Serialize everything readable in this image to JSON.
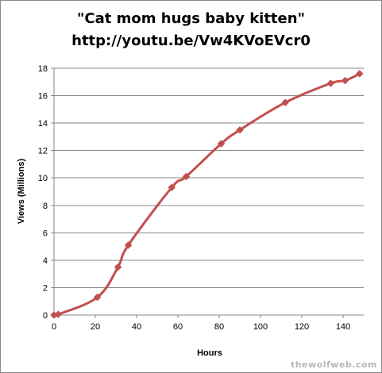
{
  "chart_data": {
    "type": "line",
    "title_lines": [
      "\"Cat mom hugs baby kitten\"",
      "http://youtu.be/Vw4KVoEVcr0"
    ],
    "xlabel": "Hours",
    "ylabel": "Views (Millions)",
    "xlim": [
      0,
      150
    ],
    "ylim": [
      0,
      18
    ],
    "x_ticks": [
      0,
      20,
      40,
      60,
      80,
      100,
      120,
      140
    ],
    "y_ticks": [
      0,
      2,
      4,
      6,
      8,
      10,
      12,
      14,
      16,
      18
    ],
    "grid": true,
    "legend": "none",
    "series": [
      {
        "color": "#c0504d",
        "marker": "diamond",
        "points": [
          [
            0,
            0
          ],
          [
            2,
            0.05
          ],
          [
            21,
            1.3
          ],
          [
            31,
            3.5
          ],
          [
            36,
            5.1
          ],
          [
            57,
            9.3
          ],
          [
            64,
            10.1
          ],
          [
            81,
            12.5
          ],
          [
            90,
            13.5
          ],
          [
            112,
            15.5
          ],
          [
            134,
            16.9
          ],
          [
            141,
            17.1
          ],
          [
            148,
            17.6
          ]
        ]
      }
    ]
  },
  "watermark": "thewolfweb.com"
}
